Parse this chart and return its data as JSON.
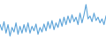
{
  "values": [
    55,
    45,
    60,
    40,
    55,
    35,
    50,
    42,
    58,
    38,
    52,
    40,
    55,
    42,
    58,
    40,
    52,
    44,
    56,
    38,
    50,
    42,
    56,
    44,
    60,
    48,
    62,
    46,
    58,
    50,
    65,
    52,
    68,
    55,
    70,
    58,
    72,
    60,
    68,
    55,
    75,
    58,
    72,
    90,
    65,
    70,
    60,
    75,
    62,
    68,
    58,
    65,
    55,
    70
  ],
  "line_color": "#5ba3d9",
  "bg_color": "#ffffff",
  "linewidth": 0.8,
  "ylim_min": 28,
  "ylim_max": 98
}
